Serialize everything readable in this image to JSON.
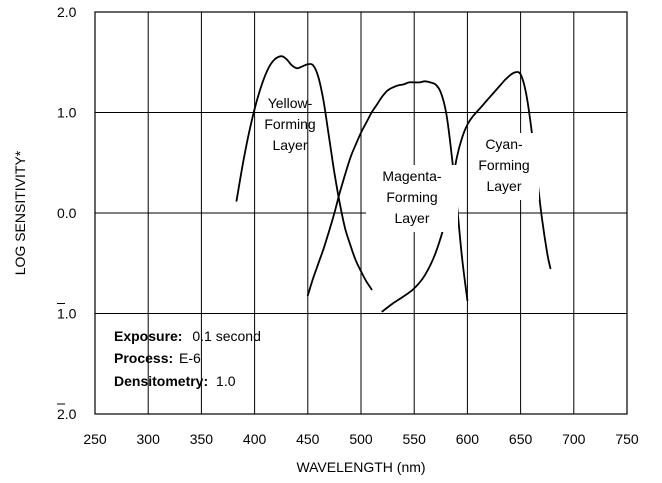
{
  "chart_data": {
    "type": "line",
    "xlabel": "WAVELENGTH (nm)",
    "ylabel": "LOG SENSITIVITY*",
    "xlim": [
      250,
      750
    ],
    "ylim": [
      -2,
      2
    ],
    "x_ticks": [
      250,
      300,
      350,
      400,
      450,
      500,
      550,
      600,
      650,
      700,
      750
    ],
    "x_tick_labels": [
      "250",
      "300",
      "350",
      "400",
      "450",
      "500",
      "550",
      "600",
      "650",
      "700",
      "750"
    ],
    "y_ticks": [
      2,
      1,
      0,
      -1,
      -2
    ],
    "y_tick_labels": [
      "2.0",
      "1.0",
      "0.0",
      "1.0",
      "2.0"
    ],
    "y_tick_overbar": [
      false,
      false,
      false,
      true,
      true
    ],
    "grid": true,
    "series": [
      {
        "name": "Yellow-Forming Layer",
        "label_lines": [
          "Yellow-",
          "Forming",
          "Layer"
        ],
        "color": "#000000",
        "x": [
          383,
          390,
          398,
          405,
          412,
          418,
          425,
          430,
          435,
          440,
          445,
          450,
          455,
          460,
          465,
          470,
          475,
          480,
          485,
          490,
          495,
          500,
          505,
          510
        ],
        "y": [
          0.12,
          0.55,
          0.95,
          1.22,
          1.42,
          1.52,
          1.56,
          1.53,
          1.47,
          1.44,
          1.46,
          1.48,
          1.47,
          1.35,
          1.1,
          0.75,
          0.4,
          0.1,
          -0.15,
          -0.32,
          -0.47,
          -0.58,
          -0.68,
          -0.76
        ]
      },
      {
        "name": "Magenta-Forming Layer",
        "label_lines": [
          "Magenta-",
          "Forming",
          "Layer"
        ],
        "color": "#000000",
        "x": [
          450,
          455,
          460,
          465,
          470,
          475,
          480,
          485,
          490,
          495,
          500,
          505,
          510,
          515,
          520,
          525,
          530,
          535,
          540,
          545,
          550,
          555,
          560,
          565,
          570,
          575,
          580,
          585,
          590,
          595,
          600
        ],
        "y": [
          -0.82,
          -0.65,
          -0.5,
          -0.35,
          -0.18,
          0.0,
          0.2,
          0.38,
          0.55,
          0.68,
          0.8,
          0.9,
          1.0,
          1.08,
          1.16,
          1.22,
          1.25,
          1.27,
          1.28,
          1.3,
          1.3,
          1.3,
          1.31,
          1.3,
          1.28,
          1.2,
          1.0,
          0.6,
          0.1,
          -0.45,
          -0.87
        ]
      },
      {
        "name": "Cyan-Forming Layer",
        "label_lines": [
          "Cyan-",
          "Forming",
          "Layer"
        ],
        "color": "#000000",
        "x": [
          520,
          530,
          540,
          550,
          560,
          570,
          580,
          585,
          590,
          595,
          600,
          605,
          610,
          615,
          620,
          625,
          630,
          635,
          640,
          645,
          650,
          655,
          660,
          665,
          670,
          675,
          678
        ],
        "y": [
          -0.98,
          -0.9,
          -0.83,
          -0.75,
          -0.62,
          -0.4,
          -0.05,
          0.25,
          0.55,
          0.75,
          0.88,
          0.96,
          1.02,
          1.08,
          1.14,
          1.2,
          1.26,
          1.32,
          1.37,
          1.4,
          1.38,
          1.2,
          0.85,
          0.4,
          -0.05,
          -0.4,
          -0.55
        ]
      }
    ],
    "annotations": [
      {
        "label": "Exposure:",
        "value": "0.1 second"
      },
      {
        "label": "Process:",
        "value": "E-6"
      },
      {
        "label": "Densitometry:",
        "value": "1.0"
      }
    ]
  }
}
